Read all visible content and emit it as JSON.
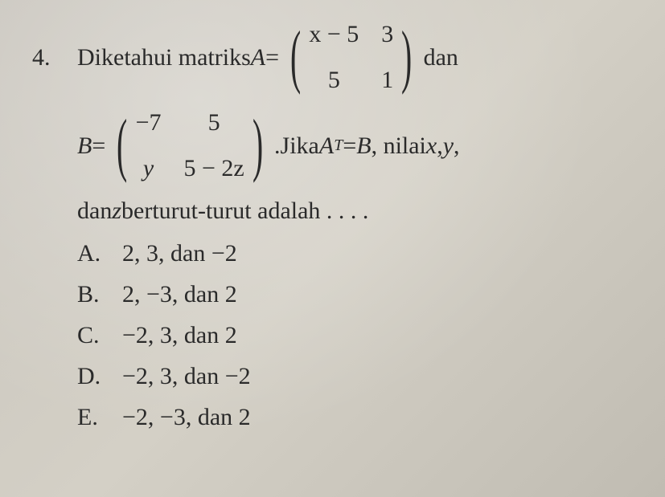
{
  "problem": {
    "number": "4.",
    "text_before_A": "Diketahui matriks ",
    "A_label": "A",
    "equals": " = ",
    "matrix_A": {
      "r1c1": "x − 5",
      "r1c2": "3",
      "r2c1": "5",
      "r2c2": "1"
    },
    "after_A": " dan",
    "B_label": "B",
    "matrix_B": {
      "r1c1": "−7",
      "r1c2": "5",
      "r2c1": "y",
      "r2c2": "5 − 2z"
    },
    "after_B_period": ". ",
    "jika": "Jika ",
    "AT_A": "A",
    "AT_T": "T",
    "eq_B": " = ",
    "B_ref": "B",
    "after_eq": ", nilai ",
    "x": "x",
    "comma1": ", ",
    "y": "y",
    "comma2": ",",
    "line3_a": "dan ",
    "z": "z",
    "line3_b": " berturut-turut adalah . . . .",
    "options": {
      "A": {
        "letter": "A.",
        "text": "2, 3, dan −2"
      },
      "B": {
        "letter": "B.",
        "text": "2, −3, dan 2"
      },
      "C": {
        "letter": "C.",
        "text": "−2, 3, dan 2"
      },
      "D": {
        "letter": "D.",
        "text": "−2, 3, dan −2"
      },
      "E": {
        "letter": "E.",
        "text": "−2, −3, dan 2"
      }
    }
  },
  "style": {
    "font_family": "Times New Roman",
    "base_font_size_pt": 22,
    "text_color": "#2a2a2a",
    "background_color": "#cdc9bf",
    "matrix_paren_scale": 2.9,
    "line_height": 1.5
  }
}
